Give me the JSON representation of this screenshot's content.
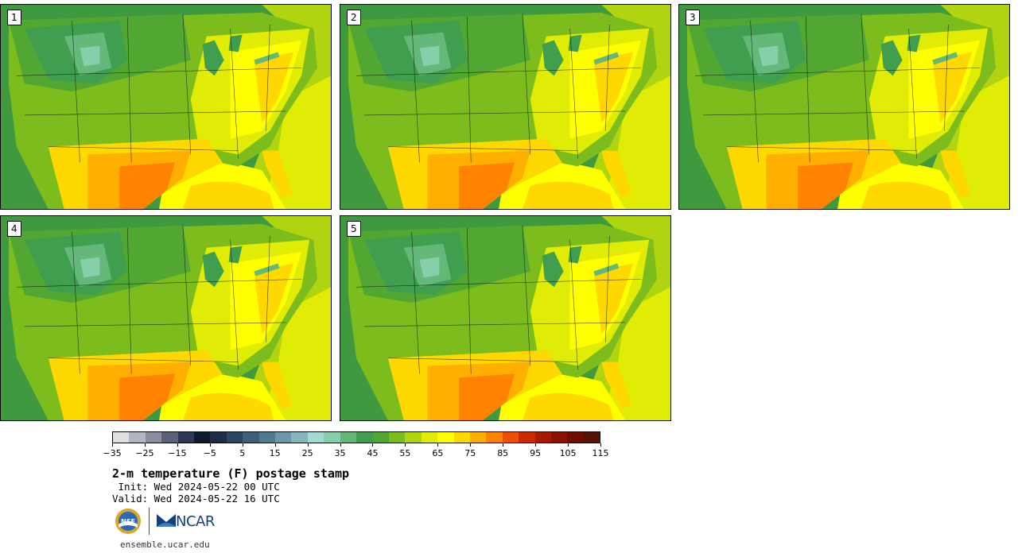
{
  "panels": [
    {
      "label": "1"
    },
    {
      "label": "2"
    },
    {
      "label": "3"
    },
    {
      "label": "4"
    },
    {
      "label": "5"
    }
  ],
  "colorbar": {
    "colors": [
      "#e0e0e0",
      "#b4b6bf",
      "#8a8e9c",
      "#5d6278",
      "#2d3652",
      "#0f1a2c",
      "#1d2c44",
      "#2d4660",
      "#3f5f78",
      "#527a8e",
      "#6a98a6",
      "#83b7bc",
      "#a0dcd4",
      "#86cfaa",
      "#63b87a",
      "#3f9f4e",
      "#52a632",
      "#7dbc1d",
      "#b0d410",
      "#e0ec05",
      "#ffff00",
      "#ffd800",
      "#ffaf00",
      "#ff8200",
      "#ee5000",
      "#cc2a00",
      "#a81a00",
      "#8a1200",
      "#6e0c00",
      "#531404"
    ],
    "tick_labels": [
      "-35",
      "-25",
      "-15",
      "-5",
      "5",
      "15",
      "25",
      "35",
      "45",
      "55",
      "65",
      "75",
      "85",
      "95",
      "105",
      "115"
    ]
  },
  "title": "2-m temperature (F) postage stamp",
  "init_line": " Init: Wed 2024-05-22 00 UTC",
  "valid_line": "Valid: Wed 2024-05-22 16 UTC",
  "logo": {
    "nsf": "NSF",
    "ncar": "NCAR"
  },
  "site": "ensemble.ucar.edu"
}
